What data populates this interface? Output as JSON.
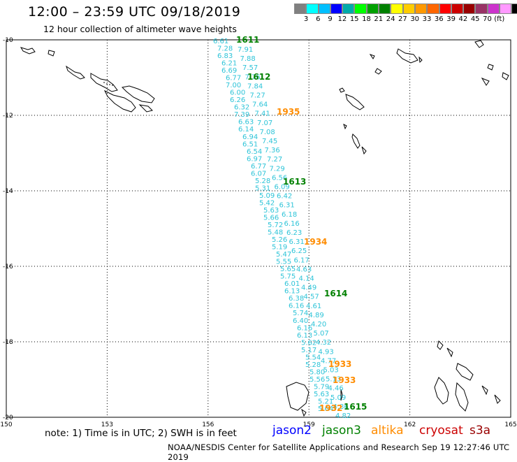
{
  "header": {
    "title": "12:00 – 23:59 UTC 09/18/2019",
    "subtitle": "12 hour collection of altimeter wave heights"
  },
  "colorscale": {
    "colors": [
      "#808080",
      "#00ffff",
      "#00bfff",
      "#0000ff",
      "#00aaaa",
      "#00ff00",
      "#00a000",
      "#008000",
      "#ffff00",
      "#ffcc00",
      "#ff9900",
      "#ff6600",
      "#ff0000",
      "#cc0000",
      "#990000",
      "#993366",
      "#cc33cc",
      "#ff99ff",
      "#000000"
    ],
    "labels": [
      "3",
      "6",
      "9",
      "12",
      "15",
      "18",
      "21",
      "24",
      "27",
      "30",
      "33",
      "36",
      "39",
      "42",
      "45",
      "70",
      "(ft)"
    ]
  },
  "axes": {
    "lon_ticks": [
      "150",
      "153",
      "156",
      "159",
      "162",
      "165"
    ],
    "lat_ticks": [
      "-10",
      "-12",
      "-14",
      "-16",
      "-18",
      "-20"
    ]
  },
  "pass_labels": [
    {
      "text": "1611",
      "color": "#008000"
    },
    {
      "text": "1612",
      "color": "#008000"
    },
    {
      "text": "1935",
      "color": "#ff8c00"
    },
    {
      "text": "1613",
      "color": "#008000"
    },
    {
      "text": "1934",
      "color": "#ff8c00"
    },
    {
      "text": "1614",
      "color": "#008000"
    },
    {
      "text": "1933",
      "color": "#ff8c00"
    },
    {
      "text": "1933",
      "color": "#ff8c00"
    },
    {
      "text": "1932",
      "color": "#ff8c00"
    },
    {
      "text": "1615",
      "color": "#008000"
    }
  ],
  "track_values": [
    "6.61",
    "7.28",
    "6.83",
    "6.21",
    "6.69",
    "6.77",
    "7.00",
    "6.00",
    "6.26",
    "6.32",
    "7.39",
    "6.63",
    "6.14",
    "6.94",
    "6.51",
    "6.54",
    "6.97",
    "6.77",
    "6.07",
    "5.28",
    "5.31",
    "5.09",
    "5.42",
    "5.63",
    "5.66",
    "5.72",
    "5.48",
    "5.26",
    "5.19",
    "5.47",
    "5.55",
    "5.65",
    "5.75",
    "6.01",
    "6.13",
    "6.38",
    "6.16",
    "5.74",
    "6.40",
    "6.16",
    "6.13",
    "5.62",
    "5.17",
    "5.54",
    "5.28",
    "5.80",
    "5.56",
    "5.79",
    "5.63",
    "5.21",
    "5.64"
  ],
  "track_values_right": [
    "7.91",
    "7.88",
    "7.57",
    "7.76",
    "7.84",
    "7.27",
    "7.64",
    "7.41",
    "7.07",
    "7.08",
    "7.45",
    "7.36",
    "7.27",
    "7.29",
    "6.56",
    "6.09",
    "6.42",
    "6.31",
    "6.18",
    "6.16",
    "6.23",
    "6.31",
    "6.25",
    "6.17",
    "4.63",
    "4.14",
    "4.49",
    "4.57",
    "4.61",
    "4.89",
    "4.20",
    "5.07",
    "4.32",
    "4.93",
    "4.77",
    "5.03",
    "5.13",
    "4.46",
    "5.09",
    "4.86",
    "4.82"
  ],
  "footer": {
    "note": "note:  1) Time is in UTC;  2) SWH is in feet",
    "legend": [
      {
        "text": "jason2",
        "color": "#0000ff"
      },
      {
        "text": "jason3",
        "color": "#008000"
      },
      {
        "text": "altika",
        "color": "#ff8c00"
      },
      {
        "text": "cryosat",
        "color": "#cc0000"
      },
      {
        "text": "s3a",
        "color": "#990000"
      }
    ],
    "credit": "NOAA/NESDIS Center for Satellite Applications and Research    Sep 19 12:27:46 UTC 2019"
  }
}
